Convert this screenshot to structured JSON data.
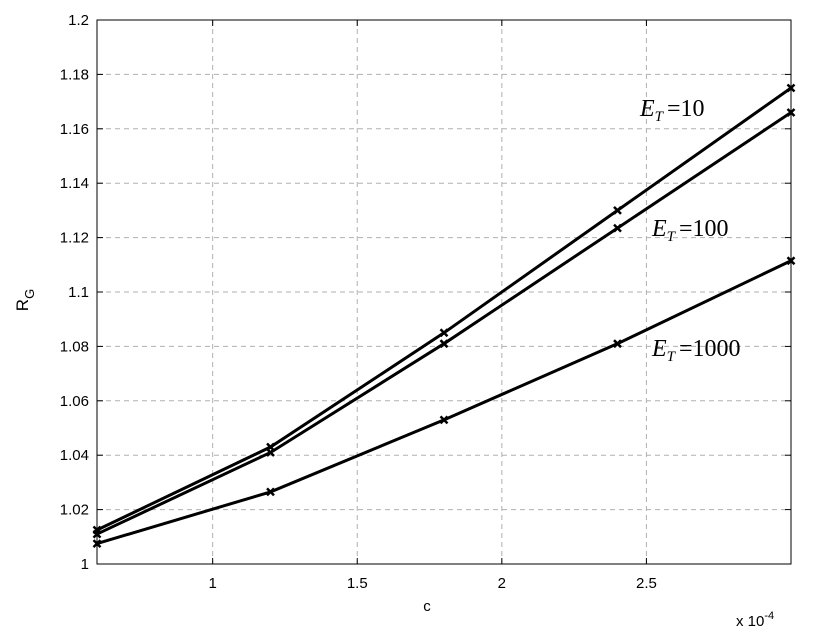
{
  "chart_data": {
    "type": "line",
    "x_label": "c",
    "y_label": {
      "text": "R",
      "sub": "G"
    },
    "x_multiplier": {
      "text": "x 10",
      "sup": "-4"
    },
    "x": [
      0.6,
      1.2,
      1.8,
      2.4,
      3.0
    ],
    "series": [
      {
        "color": "#000000",
        "values": [
          1.0125,
          1.043,
          1.085,
          1.13,
          1.175
        ]
      },
      {
        "color": "#000000",
        "values": [
          1.011,
          1.041,
          1.081,
          1.1235,
          1.166
        ]
      },
      {
        "color": "#000000",
        "values": [
          1.0075,
          1.0265,
          1.053,
          1.081,
          1.1115
        ]
      }
    ],
    "annotations": [
      {
        "text": "E",
        "sub": "T",
        "rest": "=10"
      },
      {
        "text": "E",
        "sub": "T",
        "rest": "=100"
      },
      {
        "text": "E",
        "sub": "T",
        "rest": "=1000"
      }
    ],
    "xlim": [
      0.6,
      3.0
    ],
    "ylim": [
      1,
      1.2
    ],
    "xticks": [
      1,
      1.5,
      2,
      2.5
    ],
    "yticks": [
      1,
      1.02,
      1.04,
      1.06,
      1.08,
      1.1,
      1.12,
      1.14,
      1.16,
      1.18,
      1.2
    ],
    "grid": true,
    "marker": "x"
  }
}
